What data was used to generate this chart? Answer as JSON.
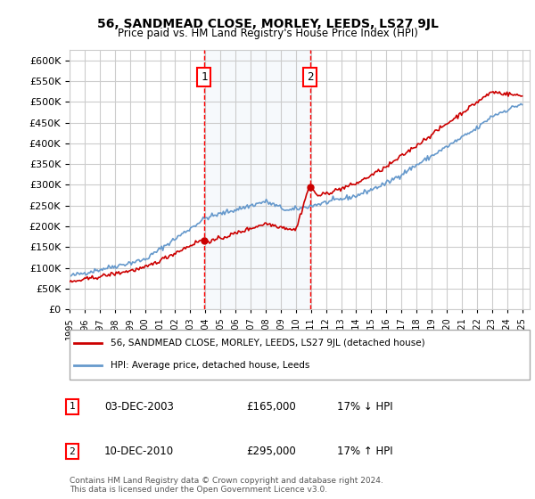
{
  "title": "56, SANDMEAD CLOSE, MORLEY, LEEDS, LS27 9JL",
  "subtitle": "Price paid vs. HM Land Registry's House Price Index (HPI)",
  "background_color": "#ffffff",
  "plot_bg_color": "#ffffff",
  "grid_color": "#cccccc",
  "shade_color": "#dce9f7",
  "ylim": [
    0,
    625000
  ],
  "yticks": [
    0,
    50000,
    100000,
    150000,
    200000,
    250000,
    300000,
    350000,
    400000,
    450000,
    500000,
    550000,
    600000
  ],
  "xlabel_start_year": 1995,
  "xlabel_end_year": 2025,
  "sale1": {
    "date_num": 2003.92,
    "price": 165000,
    "label": "1",
    "date_str": "03-DEC-2003",
    "hpi_pct": "17% ↓ HPI"
  },
  "sale2": {
    "date_num": 2010.95,
    "price": 295000,
    "label": "2",
    "date_str": "10-DEC-2010",
    "hpi_pct": "17% ↑ HPI"
  },
  "legend_label_red": "56, SANDMEAD CLOSE, MORLEY, LEEDS, LS27 9JL (detached house)",
  "legend_label_blue": "HPI: Average price, detached house, Leeds",
  "footnote": "Contains HM Land Registry data © Crown copyright and database right 2024.\nThis data is licensed under the Open Government Licence v3.0.",
  "red_line_color": "#cc0000",
  "blue_line_color": "#6699cc"
}
